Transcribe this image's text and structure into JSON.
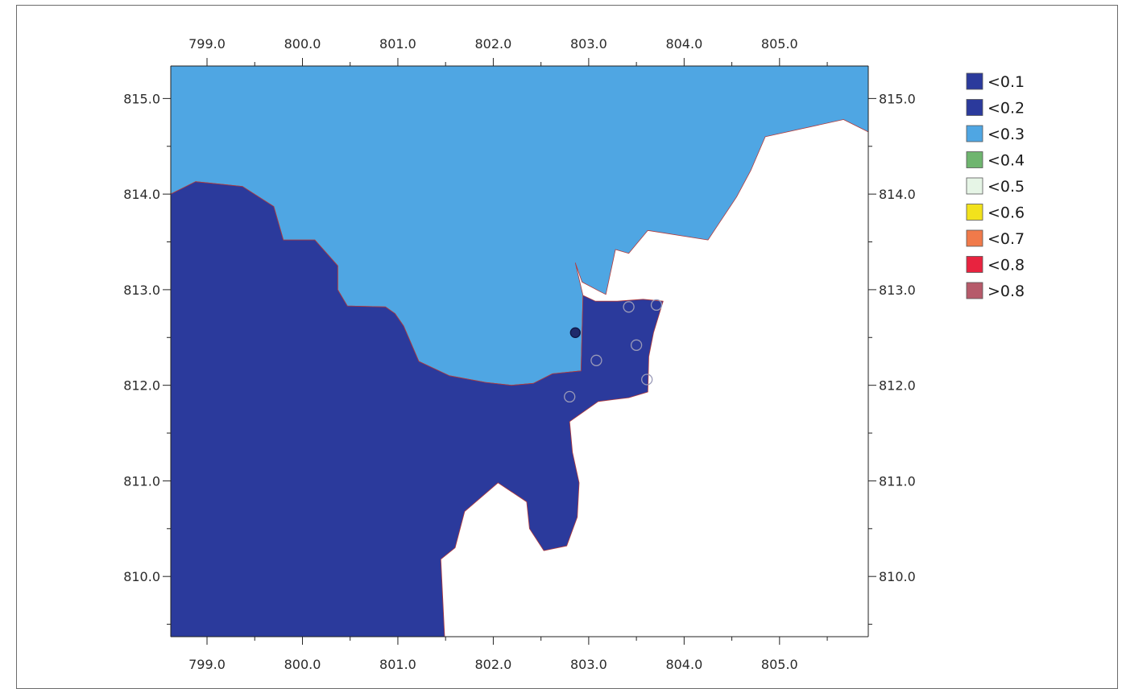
{
  "chart_data": {
    "type": "heatmap",
    "x_ticks": [
      "799.0",
      "800.0",
      "801.0",
      "802.0",
      "803.0",
      "804.0",
      "805.0"
    ],
    "y_ticks": [
      "815.0",
      "814.0",
      "813.0",
      "812.0",
      "811.0",
      "810.0"
    ],
    "xlim": [
      798.62,
      805.93
    ],
    "ylim": [
      809.37,
      815.34
    ],
    "legend": [
      {
        "label": "<0.1",
        "color": "#2b3a9c"
      },
      {
        "label": "<0.2",
        "color": "#2b3a9c"
      },
      {
        "label": "<0.3",
        "color": "#4fa6e3"
      },
      {
        "label": "<0.4",
        "color": "#6fb56f"
      },
      {
        "label": "<0.5",
        "color": "#e6f5e6"
      },
      {
        "label": "<0.6",
        "color": "#f2e21c"
      },
      {
        "label": "<0.7",
        "color": "#f07a4a"
      },
      {
        "label": "<0.8",
        "color": "#e8233f"
      },
      {
        "label": ">0.8",
        "color": "#b65a6a"
      }
    ],
    "regions": [
      {
        "class": "<0.3",
        "color": "#4fa6e3",
        "points": [
          [
            798.62,
            815.34
          ],
          [
            805.93,
            815.34
          ],
          [
            805.93,
            814.65
          ],
          [
            805.67,
            814.78
          ],
          [
            804.85,
            814.6
          ],
          [
            804.7,
            814.25
          ],
          [
            804.55,
            813.97
          ],
          [
            804.25,
            813.52
          ],
          [
            803.62,
            813.62
          ],
          [
            803.42,
            813.38
          ],
          [
            803.28,
            813.42
          ],
          [
            803.18,
            812.95
          ],
          [
            803.12,
            812.98
          ],
          [
            802.93,
            813.08
          ],
          [
            802.86,
            813.28
          ],
          [
            802.94,
            812.94
          ],
          [
            802.92,
            812.15
          ],
          [
            802.62,
            812.12
          ],
          [
            802.42,
            812.02
          ],
          [
            802.19,
            812.0
          ],
          [
            801.92,
            812.03
          ],
          [
            801.54,
            812.1
          ],
          [
            801.22,
            812.25
          ],
          [
            801.06,
            812.62
          ],
          [
            800.97,
            812.75
          ],
          [
            800.87,
            812.82
          ],
          [
            800.47,
            812.83
          ],
          [
            800.37,
            813.0
          ],
          [
            800.37,
            813.25
          ],
          [
            800.13,
            813.52
          ],
          [
            799.8,
            813.52
          ],
          [
            799.7,
            813.87
          ],
          [
            799.37,
            814.08
          ],
          [
            798.88,
            814.13
          ],
          [
            798.62,
            814.0
          ]
        ]
      },
      {
        "class": "<0.2",
        "color": "#2b3a9c",
        "points": [
          [
            798.62,
            814.0
          ],
          [
            798.88,
            814.13
          ],
          [
            799.37,
            814.08
          ],
          [
            799.7,
            813.87
          ],
          [
            799.8,
            813.52
          ],
          [
            800.13,
            813.52
          ],
          [
            800.37,
            813.25
          ],
          [
            800.37,
            813.0
          ],
          [
            800.47,
            812.83
          ],
          [
            800.87,
            812.82
          ],
          [
            800.97,
            812.75
          ],
          [
            801.06,
            812.62
          ],
          [
            801.22,
            812.25
          ],
          [
            801.54,
            812.1
          ],
          [
            801.92,
            812.03
          ],
          [
            802.19,
            812.0
          ],
          [
            802.42,
            812.02
          ],
          [
            802.62,
            812.12
          ],
          [
            802.92,
            812.15
          ],
          [
            802.94,
            812.94
          ],
          [
            803.07,
            812.88
          ],
          [
            803.3,
            812.88
          ],
          [
            803.57,
            812.9
          ],
          [
            803.78,
            812.88
          ],
          [
            803.68,
            812.55
          ],
          [
            803.63,
            812.3
          ],
          [
            803.62,
            811.93
          ],
          [
            803.42,
            811.87
          ],
          [
            803.1,
            811.83
          ],
          [
            802.8,
            811.62
          ],
          [
            802.83,
            811.3
          ],
          [
            802.9,
            810.98
          ],
          [
            802.88,
            810.62
          ],
          [
            802.77,
            810.32
          ],
          [
            802.53,
            810.27
          ],
          [
            802.38,
            810.5
          ],
          [
            802.35,
            810.78
          ],
          [
            802.05,
            810.98
          ],
          [
            801.7,
            810.68
          ],
          [
            801.6,
            810.3
          ],
          [
            801.45,
            810.18
          ],
          [
            801.49,
            809.37
          ],
          [
            798.62,
            809.37
          ]
        ]
      }
    ],
    "points": [
      {
        "x": 802.86,
        "y": 812.55,
        "style": "filled"
      },
      {
        "x": 803.42,
        "y": 812.82,
        "style": "open"
      },
      {
        "x": 803.71,
        "y": 812.84,
        "style": "open"
      },
      {
        "x": 803.08,
        "y": 812.26,
        "style": "open"
      },
      {
        "x": 803.5,
        "y": 812.42,
        "style": "open"
      },
      {
        "x": 803.61,
        "y": 812.06,
        "style": "open"
      },
      {
        "x": 802.8,
        "y": 811.88,
        "style": "open"
      }
    ]
  },
  "colors": {
    "outline": "#b33b3b",
    "filled_point": "#1f2a6b",
    "open_point": "#9a9ab8"
  }
}
